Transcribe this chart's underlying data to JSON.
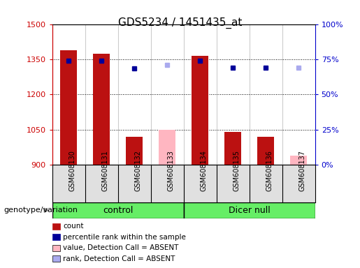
{
  "title": "GDS5234 / 1451435_at",
  "samples": [
    "GSM608130",
    "GSM608131",
    "GSM608132",
    "GSM608133",
    "GSM608134",
    "GSM608135",
    "GSM608136",
    "GSM608137"
  ],
  "count_values": [
    1390,
    1375,
    1020,
    null,
    1365,
    1040,
    1020,
    null
  ],
  "count_absent": [
    null,
    null,
    null,
    1050,
    null,
    null,
    null,
    940
  ],
  "rank_values": [
    1345,
    1345,
    1310,
    null,
    1345,
    1315,
    1315,
    null
  ],
  "rank_absent": [
    null,
    null,
    null,
    1325,
    null,
    null,
    null,
    1315
  ],
  "ylim_left": [
    900,
    1500
  ],
  "ylim_right": [
    0,
    100
  ],
  "yticks_left": [
    900,
    1050,
    1200,
    1350,
    1500
  ],
  "yticks_right": [
    0,
    25,
    50,
    75,
    100
  ],
  "bar_color_present": "#BB1111",
  "bar_color_absent": "#FFB6C1",
  "rank_color_present": "#000099",
  "rank_color_absent": "#AAAAEE",
  "bar_width": 0.5,
  "group_control_label": "control",
  "group_dicer_label": "Dicer null",
  "group_box_color": "#66EE66",
  "genotype_label": "genotype/variation",
  "legend_items": [
    "count",
    "percentile rank within the sample",
    "value, Detection Call = ABSENT",
    "rank, Detection Call = ABSENT"
  ],
  "legend_colors": [
    "#BB1111",
    "#000099",
    "#FFB6C1",
    "#AAAAEE"
  ]
}
